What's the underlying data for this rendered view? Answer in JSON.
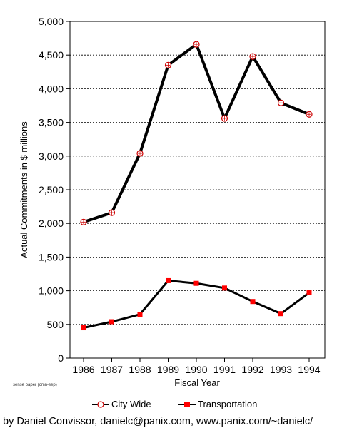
{
  "chart_data": {
    "type": "line",
    "xlabel": "Fiscal Year",
    "ylabel": "Actual Commitments in $ millions",
    "ylim": [
      0,
      5000
    ],
    "yticks": [
      "0",
      "500",
      "1,000",
      "1,500",
      "2,000",
      "2,500",
      "3,000",
      "3,500",
      "4,000",
      "4,500",
      "5,000"
    ],
    "ytick_values": [
      0,
      500,
      1000,
      1500,
      2000,
      2500,
      3000,
      3500,
      4000,
      4500,
      5000
    ],
    "categories": [
      "1986",
      "1987",
      "1988",
      "1989",
      "1990",
      "1991",
      "1992",
      "1993",
      "1994"
    ],
    "grid": "horizontal dashed",
    "legend_position": "bottom",
    "series": [
      {
        "name": "City Wide",
        "values": [
          2020,
          2160,
          3040,
          4350,
          4660,
          3560,
          4480,
          3790,
          3620
        ],
        "color": "#000000",
        "marker": "open-circle",
        "marker_color": "#cc0000"
      },
      {
        "name": "Transportation",
        "values": [
          450,
          540,
          650,
          1150,
          1110,
          1040,
          840,
          660,
          970
        ],
        "color": "#000000",
        "marker": "filled-square",
        "marker_color": "#ff0000"
      }
    ],
    "footnote": "sense paper (cmn-sep)"
  },
  "credit": "by Daniel Convissor, danielc@panix.com, www.panix.com/~danielc/"
}
